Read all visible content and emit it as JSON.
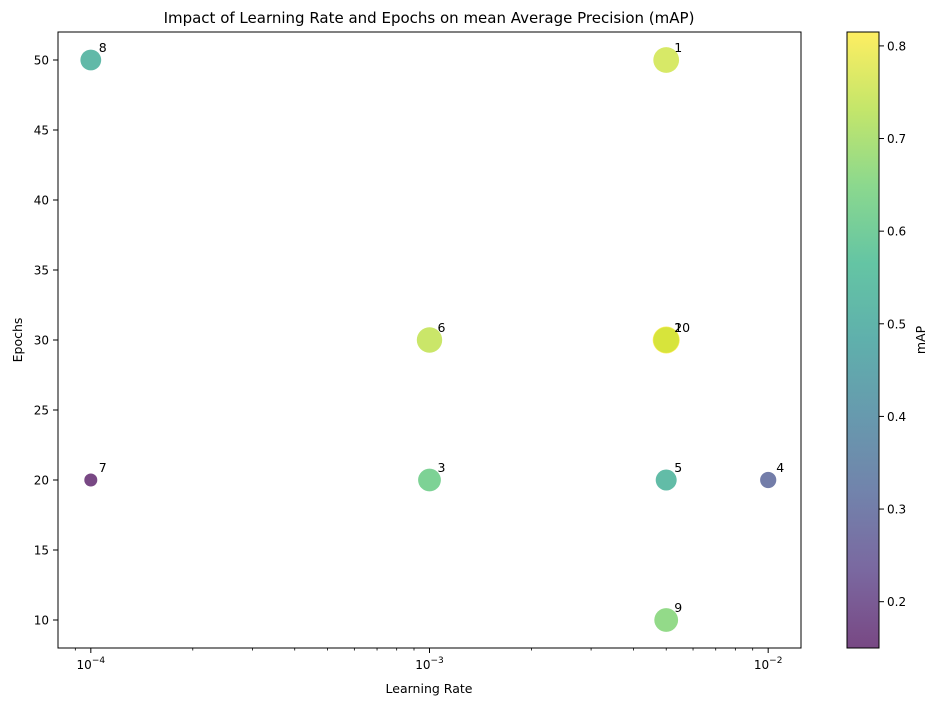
{
  "chart_data": {
    "type": "scatter",
    "title": "Impact of Learning Rate and Epochs on mean Average Precision (mAP)",
    "xlabel": "Learning Rate",
    "ylabel": "Epochs",
    "xscale": "log",
    "xlim": [
      8e-05,
      0.0125
    ],
    "ylim": [
      8,
      52
    ],
    "xticks": [
      {
        "value": 0.0001,
        "base": "10",
        "exp": "−4"
      },
      {
        "value": 0.001,
        "base": "10",
        "exp": "−3"
      },
      {
        "value": 0.01,
        "base": "10",
        "exp": "−2"
      }
    ],
    "yticks": [
      10,
      15,
      20,
      25,
      30,
      35,
      40,
      45,
      50
    ],
    "colorbar": {
      "label": "mAP",
      "range": [
        0.15,
        0.815
      ],
      "ticks": [
        "0.2",
        "0.3",
        "0.4",
        "0.5",
        "0.6",
        "0.7",
        "0.8"
      ],
      "colormap": "viridis"
    },
    "points": [
      {
        "label": "1",
        "lr": 0.005,
        "epochs": 50,
        "map": 0.76
      },
      {
        "label": "2",
        "lr": 0.005,
        "epochs": 30,
        "map": 0.815
      },
      {
        "label": "3",
        "lr": 0.001,
        "epochs": 20,
        "map": 0.62
      },
      {
        "label": "4",
        "lr": 0.01,
        "epochs": 20,
        "map": 0.3
      },
      {
        "label": "5",
        "lr": 0.005,
        "epochs": 20,
        "map": 0.53
      },
      {
        "label": "6",
        "lr": 0.001,
        "epochs": 30,
        "map": 0.74
      },
      {
        "label": "7",
        "lr": 0.0001,
        "epochs": 20,
        "map": 0.15
      },
      {
        "label": "8",
        "lr": 0.0001,
        "epochs": 50,
        "map": 0.52
      },
      {
        "label": "9",
        "lr": 0.005,
        "epochs": 10,
        "map": 0.66
      },
      {
        "label": "10",
        "lr": 0.005,
        "epochs": 30,
        "map": 0.76
      }
    ],
    "grid": false,
    "legend": "none"
  }
}
